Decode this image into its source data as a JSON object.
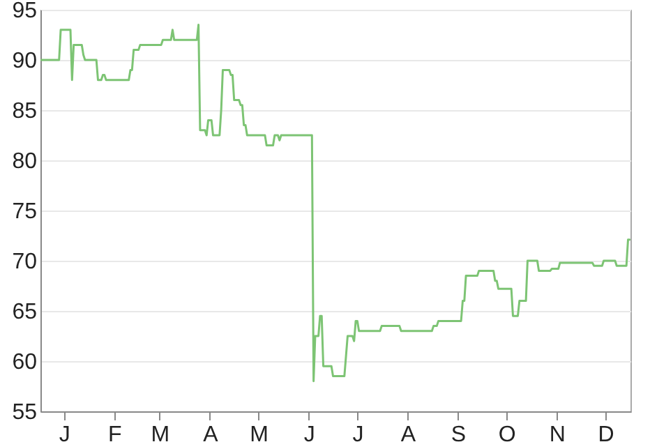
{
  "chart_data": {
    "type": "line",
    "ylim": [
      55,
      95
    ],
    "grid": "y",
    "marker": "none",
    "line_style": "solid",
    "categories": [
      null,
      null,
      null,
      null,
      null,
      null,
      null,
      null,
      null,
      null,
      null,
      null,
      null,
      null,
      "J",
      null,
      null,
      null,
      null,
      null,
      null,
      null,
      null,
      null,
      null,
      null,
      null,
      null,
      null,
      null,
      null,
      null,
      null,
      null,
      null,
      null,
      null,
      null,
      null,
      null,
      null,
      null,
      null,
      null,
      null,
      "F",
      null,
      null,
      null,
      null,
      null,
      null,
      null,
      null,
      null,
      null,
      null,
      null,
      null,
      null,
      null,
      null,
      null,
      null,
      null,
      null,
      null,
      null,
      null,
      null,
      null,
      null,
      null,
      "M",
      null,
      null,
      null,
      null,
      null,
      null,
      null,
      null,
      null,
      null,
      null,
      null,
      null,
      null,
      null,
      null,
      null,
      null,
      null,
      null,
      null,
      null,
      null,
      null,
      null,
      null,
      null,
      null,
      null,
      null,
      "A",
      null,
      null,
      null,
      null,
      null,
      null,
      null,
      null,
      null,
      null,
      null,
      null,
      null,
      null,
      null,
      null,
      null,
      null,
      null,
      null,
      null,
      null,
      null,
      null,
      null,
      null,
      null,
      null,
      null,
      "M",
      null,
      null,
      null,
      null,
      null,
      null,
      null,
      null,
      null,
      null,
      null,
      null,
      null,
      null,
      null,
      null,
      null,
      null,
      null,
      null,
      null,
      null,
      null,
      null,
      null,
      null,
      null,
      null,
      null,
      null,
      "J",
      null,
      null,
      null,
      null,
      null,
      null,
      null,
      null,
      null,
      null,
      null,
      null,
      null,
      null,
      null,
      null,
      null,
      null,
      null,
      null,
      null,
      null,
      null,
      null,
      null,
      null,
      null,
      null,
      null,
      "J",
      null,
      null,
      null,
      null,
      null,
      null,
      null,
      null,
      null,
      null,
      null,
      null,
      null,
      null,
      null,
      null,
      null,
      null,
      null,
      null,
      null,
      null,
      null,
      null,
      null,
      null,
      null,
      null,
      null,
      null,
      "A",
      null,
      null,
      null,
      null,
      null,
      null,
      null,
      null,
      null,
      null,
      null,
      null,
      null,
      null,
      null,
      null,
      null,
      null,
      null,
      null,
      null,
      null,
      null,
      null,
      null,
      null,
      null,
      null,
      null,
      null,
      "S",
      null,
      null,
      null,
      null,
      null,
      null,
      null,
      null,
      null,
      null,
      null,
      null,
      null,
      null,
      null,
      null,
      null,
      null,
      null,
      null,
      null,
      null,
      null,
      null,
      null,
      null,
      null,
      null,
      null,
      "O",
      null,
      null,
      null,
      null,
      null,
      null,
      null,
      null,
      null,
      null,
      null,
      null,
      null,
      null,
      null,
      null,
      null,
      null,
      null,
      null,
      null,
      null,
      null,
      null,
      null,
      null,
      null,
      null,
      null,
      null,
      "N",
      null,
      null,
      null,
      null,
      null,
      null,
      null,
      null,
      null,
      null,
      null,
      null,
      null,
      null,
      null,
      null,
      null,
      null,
      null,
      null,
      null,
      null,
      null,
      null,
      null,
      null,
      null,
      null,
      null,
      "D",
      null,
      null,
      null,
      null,
      null,
      null,
      null,
      null,
      null,
      null,
      null,
      null,
      null,
      null,
      null
    ],
    "yticks": [
      55,
      60,
      65,
      70,
      75,
      80,
      85,
      90,
      95
    ],
    "series": [
      {
        "color": "#7dc474",
        "values": [
          90,
          90,
          90,
          90,
          90,
          90,
          90,
          90,
          90,
          90,
          90,
          90,
          93,
          93,
          93,
          93,
          93,
          93,
          93,
          88,
          91.5,
          91.5,
          91.5,
          91.5,
          91.5,
          91.5,
          90.5,
          90,
          90,
          90,
          90,
          90,
          90,
          90,
          90,
          88,
          88,
          88,
          88.5,
          88.5,
          88,
          88,
          88,
          88,
          88,
          88,
          88,
          88,
          88,
          88,
          88,
          88,
          88,
          88,
          88,
          89,
          89,
          91,
          91,
          91,
          91,
          91.5,
          91.5,
          91.5,
          91.5,
          91.5,
          91.5,
          91.5,
          91.5,
          91.5,
          91.5,
          91.5,
          91.5,
          91.5,
          91.5,
          92,
          92,
          92,
          92,
          92,
          92,
          93,
          92,
          92,
          92,
          92,
          92,
          92,
          92,
          92,
          92,
          92,
          92,
          92,
          92,
          92,
          92,
          93.5,
          83,
          83,
          83,
          83,
          82.5,
          84,
          84,
          84,
          82.5,
          82.5,
          82.5,
          82.5,
          82.5,
          85,
          89,
          89,
          89,
          89,
          89,
          88.5,
          88.5,
          86,
          86,
          86,
          86,
          85.5,
          85.5,
          83.5,
          83.5,
          82.5,
          82.5,
          82.5,
          82.5,
          82.5,
          82.5,
          82.5,
          82.5,
          82.5,
          82.5,
          82.5,
          82.5,
          81.5,
          81.5,
          81.5,
          81.5,
          81.5,
          82.5,
          82.5,
          82.5,
          82,
          82.5,
          82.5,
          82.5,
          82.5,
          82.5,
          82.5,
          82.5,
          82.5,
          82.5,
          82.5,
          82.5,
          82.5,
          82.5,
          82.5,
          82.5,
          82.5,
          82.5,
          82.5,
          82.5,
          82.5,
          58,
          62.5,
          62.5,
          62.5,
          64.5,
          64.5,
          59.5,
          59.5,
          59.5,
          59.5,
          59.5,
          59.5,
          58.5,
          58.5,
          58.5,
          58.5,
          58.5,
          58.5,
          58.5,
          58.5,
          60.5,
          62.5,
          62.5,
          62.5,
          62.5,
          62,
          64,
          64,
          63,
          63,
          63,
          63,
          63,
          63,
          63,
          63,
          63,
          63,
          63,
          63,
          63,
          63,
          63.5,
          63.5,
          63.5,
          63.5,
          63.5,
          63.5,
          63.5,
          63.5,
          63.5,
          63.5,
          63.5,
          63.5,
          63,
          63,
          63,
          63,
          63,
          63,
          63,
          63,
          63,
          63,
          63,
          63,
          63,
          63,
          63,
          63,
          63,
          63,
          63,
          63,
          63.5,
          63.5,
          63.5,
          64,
          64,
          64,
          64,
          64,
          64,
          64,
          64,
          64,
          64,
          64,
          64,
          64,
          64,
          64,
          66,
          66,
          68.5,
          68.5,
          68.5,
          68.5,
          68.5,
          68.5,
          68.5,
          68.5,
          69,
          69,
          69,
          69,
          69,
          69,
          69,
          69,
          69,
          69,
          68,
          68,
          67.2,
          67.2,
          67.2,
          67.2,
          67.2,
          67.2,
          67.2,
          67.2,
          67.2,
          64.5,
          64.5,
          64.5,
          64.5,
          66,
          66,
          66,
          66,
          66,
          70,
          70,
          70,
          70,
          70,
          70,
          70,
          69,
          69,
          69,
          69,
          69,
          69,
          69,
          69,
          69.2,
          69.2,
          69.2,
          69.2,
          69.2,
          69.8,
          69.8,
          69.8,
          69.8,
          69.8,
          69.8,
          69.8,
          69.8,
          69.8,
          69.8,
          69.8,
          69.8,
          69.8,
          69.8,
          69.8,
          69.8,
          69.8,
          69.8,
          69.8,
          69.8,
          69.8,
          69.5,
          69.5,
          69.5,
          69.5,
          69.5,
          69.5,
          70,
          70,
          70,
          70,
          70,
          70,
          70,
          70,
          69.5,
          69.5,
          69.5,
          69.5,
          69.5,
          69.5,
          69.5,
          72.1,
          72.1
        ]
      }
    ]
  }
}
